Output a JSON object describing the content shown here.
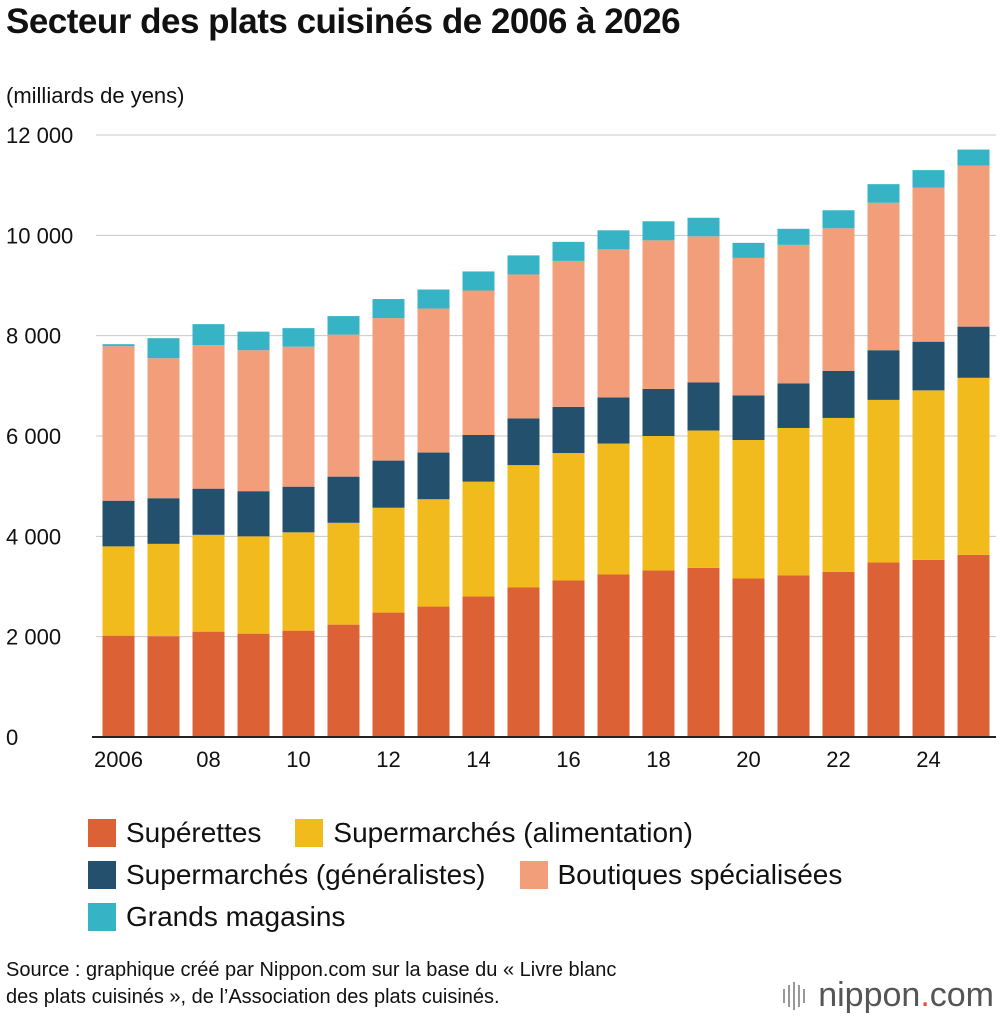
{
  "title": "Secteur des plats cuisinés de 2006 à 2026",
  "unit_label": "(milliards de yens)",
  "source_lines": [
    "Source : graphique créé par Nippon.com sur la base du « Livre blanc",
    "des plats cuisinés », de l’Association des plats cuisinés."
  ],
  "brand": {
    "name": "nippon",
    "dot": ".",
    "tld": "com"
  },
  "chart_data": {
    "type": "bar",
    "stacked": true,
    "title": "Secteur des plats cuisinés de 2006 à 2026",
    "ylabel": "(milliards de yens)",
    "xlabel": "",
    "ylim": [
      0,
      12000
    ],
    "y_ticks": [
      0,
      2000,
      4000,
      6000,
      8000,
      10000,
      12000
    ],
    "y_tick_labels": [
      "0",
      "2 000",
      "4 000",
      "6 000",
      "8 000",
      "10 000",
      "12 000"
    ],
    "x_tick_labels": [
      "2006",
      "08",
      "10",
      "12",
      "14",
      "16",
      "18",
      "20",
      "22",
      "24"
    ],
    "x_tick_label_positions": [
      0,
      2,
      4,
      6,
      8,
      10,
      12,
      14,
      16,
      18
    ],
    "grid": true,
    "legend_position": "bottom",
    "categories": [
      "2006",
      "2007",
      "2008",
      "2009",
      "2010",
      "2011",
      "2012",
      "2013",
      "2014",
      "2015",
      "2016",
      "2017",
      "2018",
      "2019",
      "2020",
      "2021",
      "2022",
      "2023",
      "2024",
      "2025"
    ],
    "series": [
      {
        "name": "Supérettes",
        "color": "#dc6235",
        "values": [
          2020,
          2010,
          2100,
          2060,
          2120,
          2240,
          2480,
          2600,
          2800,
          2980,
          3120,
          3240,
          3320,
          3370,
          3160,
          3220,
          3290,
          3480,
          3530,
          3630
        ]
      },
      {
        "name": "Supermarchés (alimentation)",
        "color": "#f1bb1d",
        "values": [
          1780,
          1840,
          1930,
          1940,
          1960,
          2030,
          2090,
          2140,
          2290,
          2440,
          2540,
          2610,
          2680,
          2740,
          2760,
          2940,
          3070,
          3240,
          3380,
          3530
        ]
      },
      {
        "name": "Supermarchés (généralistes)",
        "color": "#23506d",
        "values": [
          910,
          910,
          920,
          900,
          910,
          920,
          940,
          930,
          930,
          930,
          920,
          920,
          940,
          960,
          890,
          890,
          940,
          990,
          970,
          1020
        ]
      },
      {
        "name": "Boutiques spécialisées",
        "color": "#f29e7b",
        "values": [
          3080,
          2790,
          2860,
          2810,
          2790,
          2830,
          2840,
          2870,
          2880,
          2870,
          2910,
          2950,
          2960,
          2910,
          2740,
          2760,
          2840,
          2940,
          3070,
          3210
        ]
      },
      {
        "name": "Grands magasins",
        "color": "#36b3c4",
        "values": [
          40,
          400,
          420,
          370,
          370,
          370,
          380,
          380,
          380,
          380,
          380,
          380,
          380,
          370,
          300,
          320,
          360,
          370,
          350,
          320
        ]
      }
    ]
  }
}
